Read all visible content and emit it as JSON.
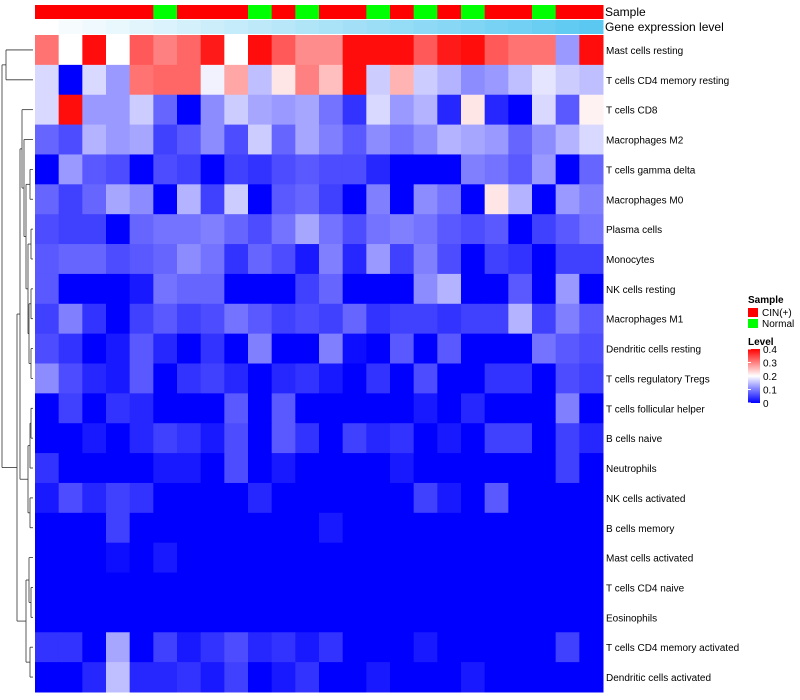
{
  "chart_data": {
    "type": "heatmap",
    "annotation_labels": [
      "Sample",
      "Gene expression level"
    ],
    "samples": [
      "CIN(+)",
      "CIN(+)",
      "CIN(+)",
      "CIN(+)",
      "CIN(+)",
      "Normal",
      "CIN(+)",
      "CIN(+)",
      "CIN(+)",
      "Normal",
      "CIN(+)",
      "Normal",
      "CIN(+)",
      "CIN(+)",
      "Normal",
      "CIN(+)",
      "Normal",
      "CIN(+)",
      "Normal",
      "CIN(+)",
      "CIN(+)",
      "Normal",
      "CIN(+)",
      "CIN(+)"
    ],
    "gene_expression_level": [
      0.0,
      0.05,
      0.09,
      0.13,
      0.17,
      0.21,
      0.25,
      0.3,
      0.34,
      0.38,
      0.42,
      0.46,
      0.5,
      0.54,
      0.58,
      0.62,
      0.66,
      0.7,
      0.74,
      0.79,
      0.83,
      0.87,
      0.92,
      0.96
    ],
    "rows": [
      {
        "label": "Mast cells resting",
        "values": [
          0.31,
          0.2,
          0.39,
          0.2,
          0.33,
          0.3,
          0.32,
          0.38,
          0.2,
          0.39,
          0.33,
          0.29,
          0.29,
          0.39,
          0.39,
          0.39,
          0.33,
          0.38,
          0.39,
          0.33,
          0.31,
          0.31,
          0.12,
          0.39
        ]
      },
      {
        "label": "T cells CD4 memory resting",
        "values": [
          0.17,
          0.0,
          0.17,
          0.12,
          0.31,
          0.32,
          0.32,
          0.19,
          0.27,
          0.15,
          0.22,
          0.3,
          0.25,
          0.39,
          0.16,
          0.26,
          0.16,
          0.14,
          0.11,
          0.12,
          0.15,
          0.18,
          0.16,
          0.15
        ]
      },
      {
        "label": "T cells CD8",
        "values": [
          0.17,
          0.39,
          0.12,
          0.12,
          0.16,
          0.08,
          0.0,
          0.11,
          0.16,
          0.13,
          0.12,
          0.13,
          0.09,
          0.04,
          0.17,
          0.12,
          0.14,
          0.03,
          0.22,
          0.03,
          0.0,
          0.17,
          0.07,
          0.21
        ]
      },
      {
        "label": "Macrophages M2",
        "values": [
          0.08,
          0.06,
          0.14,
          0.12,
          0.13,
          0.05,
          0.07,
          0.11,
          0.06,
          0.16,
          0.08,
          0.13,
          0.1,
          0.07,
          0.11,
          0.09,
          0.11,
          0.14,
          0.13,
          0.12,
          0.08,
          0.11,
          0.14,
          0.17
        ]
      },
      {
        "label": "T cells gamma delta",
        "values": [
          0.0,
          0.12,
          0.07,
          0.06,
          0.0,
          0.06,
          0.05,
          0.0,
          0.05,
          0.04,
          0.06,
          0.07,
          0.06,
          0.06,
          0.03,
          0.0,
          0.0,
          0.0,
          0.1,
          0.09,
          0.07,
          0.12,
          0.0,
          0.08
        ]
      },
      {
        "label": "Macrophages M0",
        "values": [
          0.08,
          0.05,
          0.08,
          0.13,
          0.11,
          0.0,
          0.14,
          0.05,
          0.16,
          0.0,
          0.07,
          0.08,
          0.05,
          0.0,
          0.1,
          0.0,
          0.11,
          0.09,
          0.0,
          0.22,
          0.14,
          0.0,
          0.12,
          0.1
        ]
      },
      {
        "label": "Plasma cells",
        "values": [
          0.06,
          0.05,
          0.05,
          0.0,
          0.08,
          0.09,
          0.09,
          0.1,
          0.08,
          0.06,
          0.09,
          0.13,
          0.09,
          0.06,
          0.09,
          0.1,
          0.09,
          0.07,
          0.06,
          0.07,
          0.0,
          0.05,
          0.07,
          0.09
        ]
      },
      {
        "label": "Monocytes",
        "values": [
          0.07,
          0.08,
          0.08,
          0.06,
          0.07,
          0.08,
          0.11,
          0.09,
          0.04,
          0.08,
          0.06,
          0.02,
          0.1,
          0.03,
          0.12,
          0.05,
          0.1,
          0.06,
          0.0,
          0.05,
          0.04,
          0.0,
          0.05,
          0.05
        ]
      },
      {
        "label": "NK cells resting",
        "values": [
          0.07,
          0.0,
          0.0,
          0.0,
          0.02,
          0.09,
          0.08,
          0.08,
          0.0,
          0.0,
          0.0,
          0.05,
          0.08,
          0.0,
          0.0,
          0.0,
          0.11,
          0.14,
          0.0,
          0.0,
          0.07,
          0.0,
          0.12,
          0.0
        ]
      },
      {
        "label": "Macrophages M1",
        "values": [
          0.05,
          0.1,
          0.04,
          0.0,
          0.05,
          0.07,
          0.05,
          0.06,
          0.09,
          0.07,
          0.05,
          0.06,
          0.05,
          0.08,
          0.04,
          0.05,
          0.05,
          0.04,
          0.05,
          0.05,
          0.14,
          0.05,
          0.1,
          0.07
        ]
      },
      {
        "label": "Dendritic cells resting",
        "values": [
          0.06,
          0.04,
          0.0,
          0.02,
          0.07,
          0.03,
          0.0,
          0.04,
          0.0,
          0.1,
          0.0,
          0.0,
          0.1,
          0.01,
          0.0,
          0.07,
          0.0,
          0.07,
          0.0,
          0.0,
          0.0,
          0.09,
          0.07,
          0.06
        ]
      },
      {
        "label": "T cells regulatory  Tregs",
        "values": [
          0.11,
          0.06,
          0.03,
          0.02,
          0.07,
          0.0,
          0.04,
          0.05,
          0.03,
          0.0,
          0.03,
          0.04,
          0.02,
          0.0,
          0.04,
          0.0,
          0.06,
          0.0,
          0.0,
          0.04,
          0.04,
          0.0,
          0.06,
          0.05
        ]
      },
      {
        "label": "T cells follicular helper",
        "values": [
          0.0,
          0.05,
          0.0,
          0.04,
          0.03,
          0.0,
          0.0,
          0.0,
          0.07,
          0.0,
          0.07,
          0.0,
          0.0,
          0.0,
          0.0,
          0.0,
          0.02,
          0.0,
          0.03,
          0.0,
          0.0,
          0.0,
          0.1,
          0.0
        ]
      },
      {
        "label": "B cells naive",
        "values": [
          0.0,
          0.0,
          0.02,
          0.0,
          0.03,
          0.05,
          0.04,
          0.02,
          0.06,
          0.0,
          0.07,
          0.04,
          0.0,
          0.05,
          0.03,
          0.04,
          0.0,
          0.02,
          0.0,
          0.05,
          0.05,
          0.0,
          0.05,
          0.03
        ]
      },
      {
        "label": "Neutrophils",
        "values": [
          0.04,
          0.0,
          0.0,
          0.0,
          0.0,
          0.02,
          0.02,
          0.0,
          0.06,
          0.0,
          0.02,
          0.0,
          0.0,
          0.0,
          0.0,
          0.02,
          0.0,
          0.0,
          0.0,
          0.0,
          0.0,
          0.0,
          0.05,
          0.0
        ]
      },
      {
        "label": "NK cells activated",
        "values": [
          0.02,
          0.06,
          0.03,
          0.05,
          0.04,
          0.0,
          0.0,
          0.0,
          0.0,
          0.03,
          0.0,
          0.0,
          0.0,
          0.0,
          0.0,
          0.0,
          0.05,
          0.02,
          0.0,
          0.07,
          0.0,
          0.0,
          0.0,
          0.0
        ]
      },
      {
        "label": "B cells memory",
        "values": [
          0.0,
          0.0,
          0.0,
          0.05,
          0.0,
          0.0,
          0.0,
          0.0,
          0.0,
          0.0,
          0.0,
          0.0,
          0.02,
          0.0,
          0.0,
          0.0,
          0.0,
          0.0,
          0.0,
          0.0,
          0.0,
          0.0,
          0.0,
          0.0
        ]
      },
      {
        "label": "Mast cells activated",
        "values": [
          0.0,
          0.0,
          0.0,
          0.01,
          0.0,
          0.02,
          0.0,
          0.0,
          0.0,
          0.0,
          0.0,
          0.0,
          0.0,
          0.0,
          0.0,
          0.0,
          0.0,
          0.0,
          0.0,
          0.0,
          0.0,
          0.0,
          0.0,
          0.0
        ]
      },
      {
        "label": "T cells CD4 naive",
        "values": [
          0.0,
          0.0,
          0.0,
          0.0,
          0.0,
          0.0,
          0.0,
          0.0,
          0.0,
          0.0,
          0.0,
          0.0,
          0.0,
          0.0,
          0.0,
          0.0,
          0.0,
          0.0,
          0.0,
          0.0,
          0.0,
          0.0,
          0.0,
          0.0
        ]
      },
      {
        "label": "Eosinophils",
        "values": [
          0.0,
          0.0,
          0.0,
          0.0,
          0.0,
          0.0,
          0.0,
          0.0,
          0.0,
          0.0,
          0.0,
          0.0,
          0.0,
          0.0,
          0.0,
          0.0,
          0.0,
          0.0,
          0.0,
          0.0,
          0.0,
          0.0,
          0.0,
          0.0
        ]
      },
      {
        "label": "T cells CD4 memory activated",
        "values": [
          0.04,
          0.04,
          0.0,
          0.13,
          0.0,
          0.05,
          0.02,
          0.04,
          0.06,
          0.03,
          0.04,
          0.02,
          0.04,
          0.0,
          0.0,
          0.0,
          0.02,
          0.0,
          0.0,
          0.0,
          0.0,
          0.0,
          0.05,
          0.0
        ]
      },
      {
        "label": "Dendritic cells activated",
        "values": [
          0.0,
          0.0,
          0.03,
          0.15,
          0.03,
          0.03,
          0.04,
          0.02,
          0.05,
          0.0,
          0.02,
          0.04,
          0.0,
          0.0,
          0.02,
          0.0,
          0.0,
          0.0,
          0.02,
          0.0,
          0.0,
          0.0,
          0.0,
          0.0
        ]
      }
    ],
    "legends": {
      "sample": {
        "title": "Sample",
        "entries": [
          {
            "label": "CIN(+)",
            "color": "#ff0000"
          },
          {
            "label": "Normal",
            "color": "#00ff00"
          }
        ]
      },
      "level": {
        "title": "Level",
        "range": [
          0,
          0.4
        ],
        "ticks": [
          0.4,
          0.3,
          0.2,
          0.1,
          0
        ],
        "tick_labels": [
          "0.4",
          "0.3",
          "0.2",
          "0.1",
          "0"
        ]
      }
    },
    "color_scale": {
      "low": "#0000ff",
      "mid": "#ffffff",
      "high": "#ff0000",
      "min": 0,
      "max": 0.4
    },
    "annotation_gradient": {
      "low": "#ffffff",
      "high": "#54c6f0"
    },
    "dendrogram": "rows"
  }
}
